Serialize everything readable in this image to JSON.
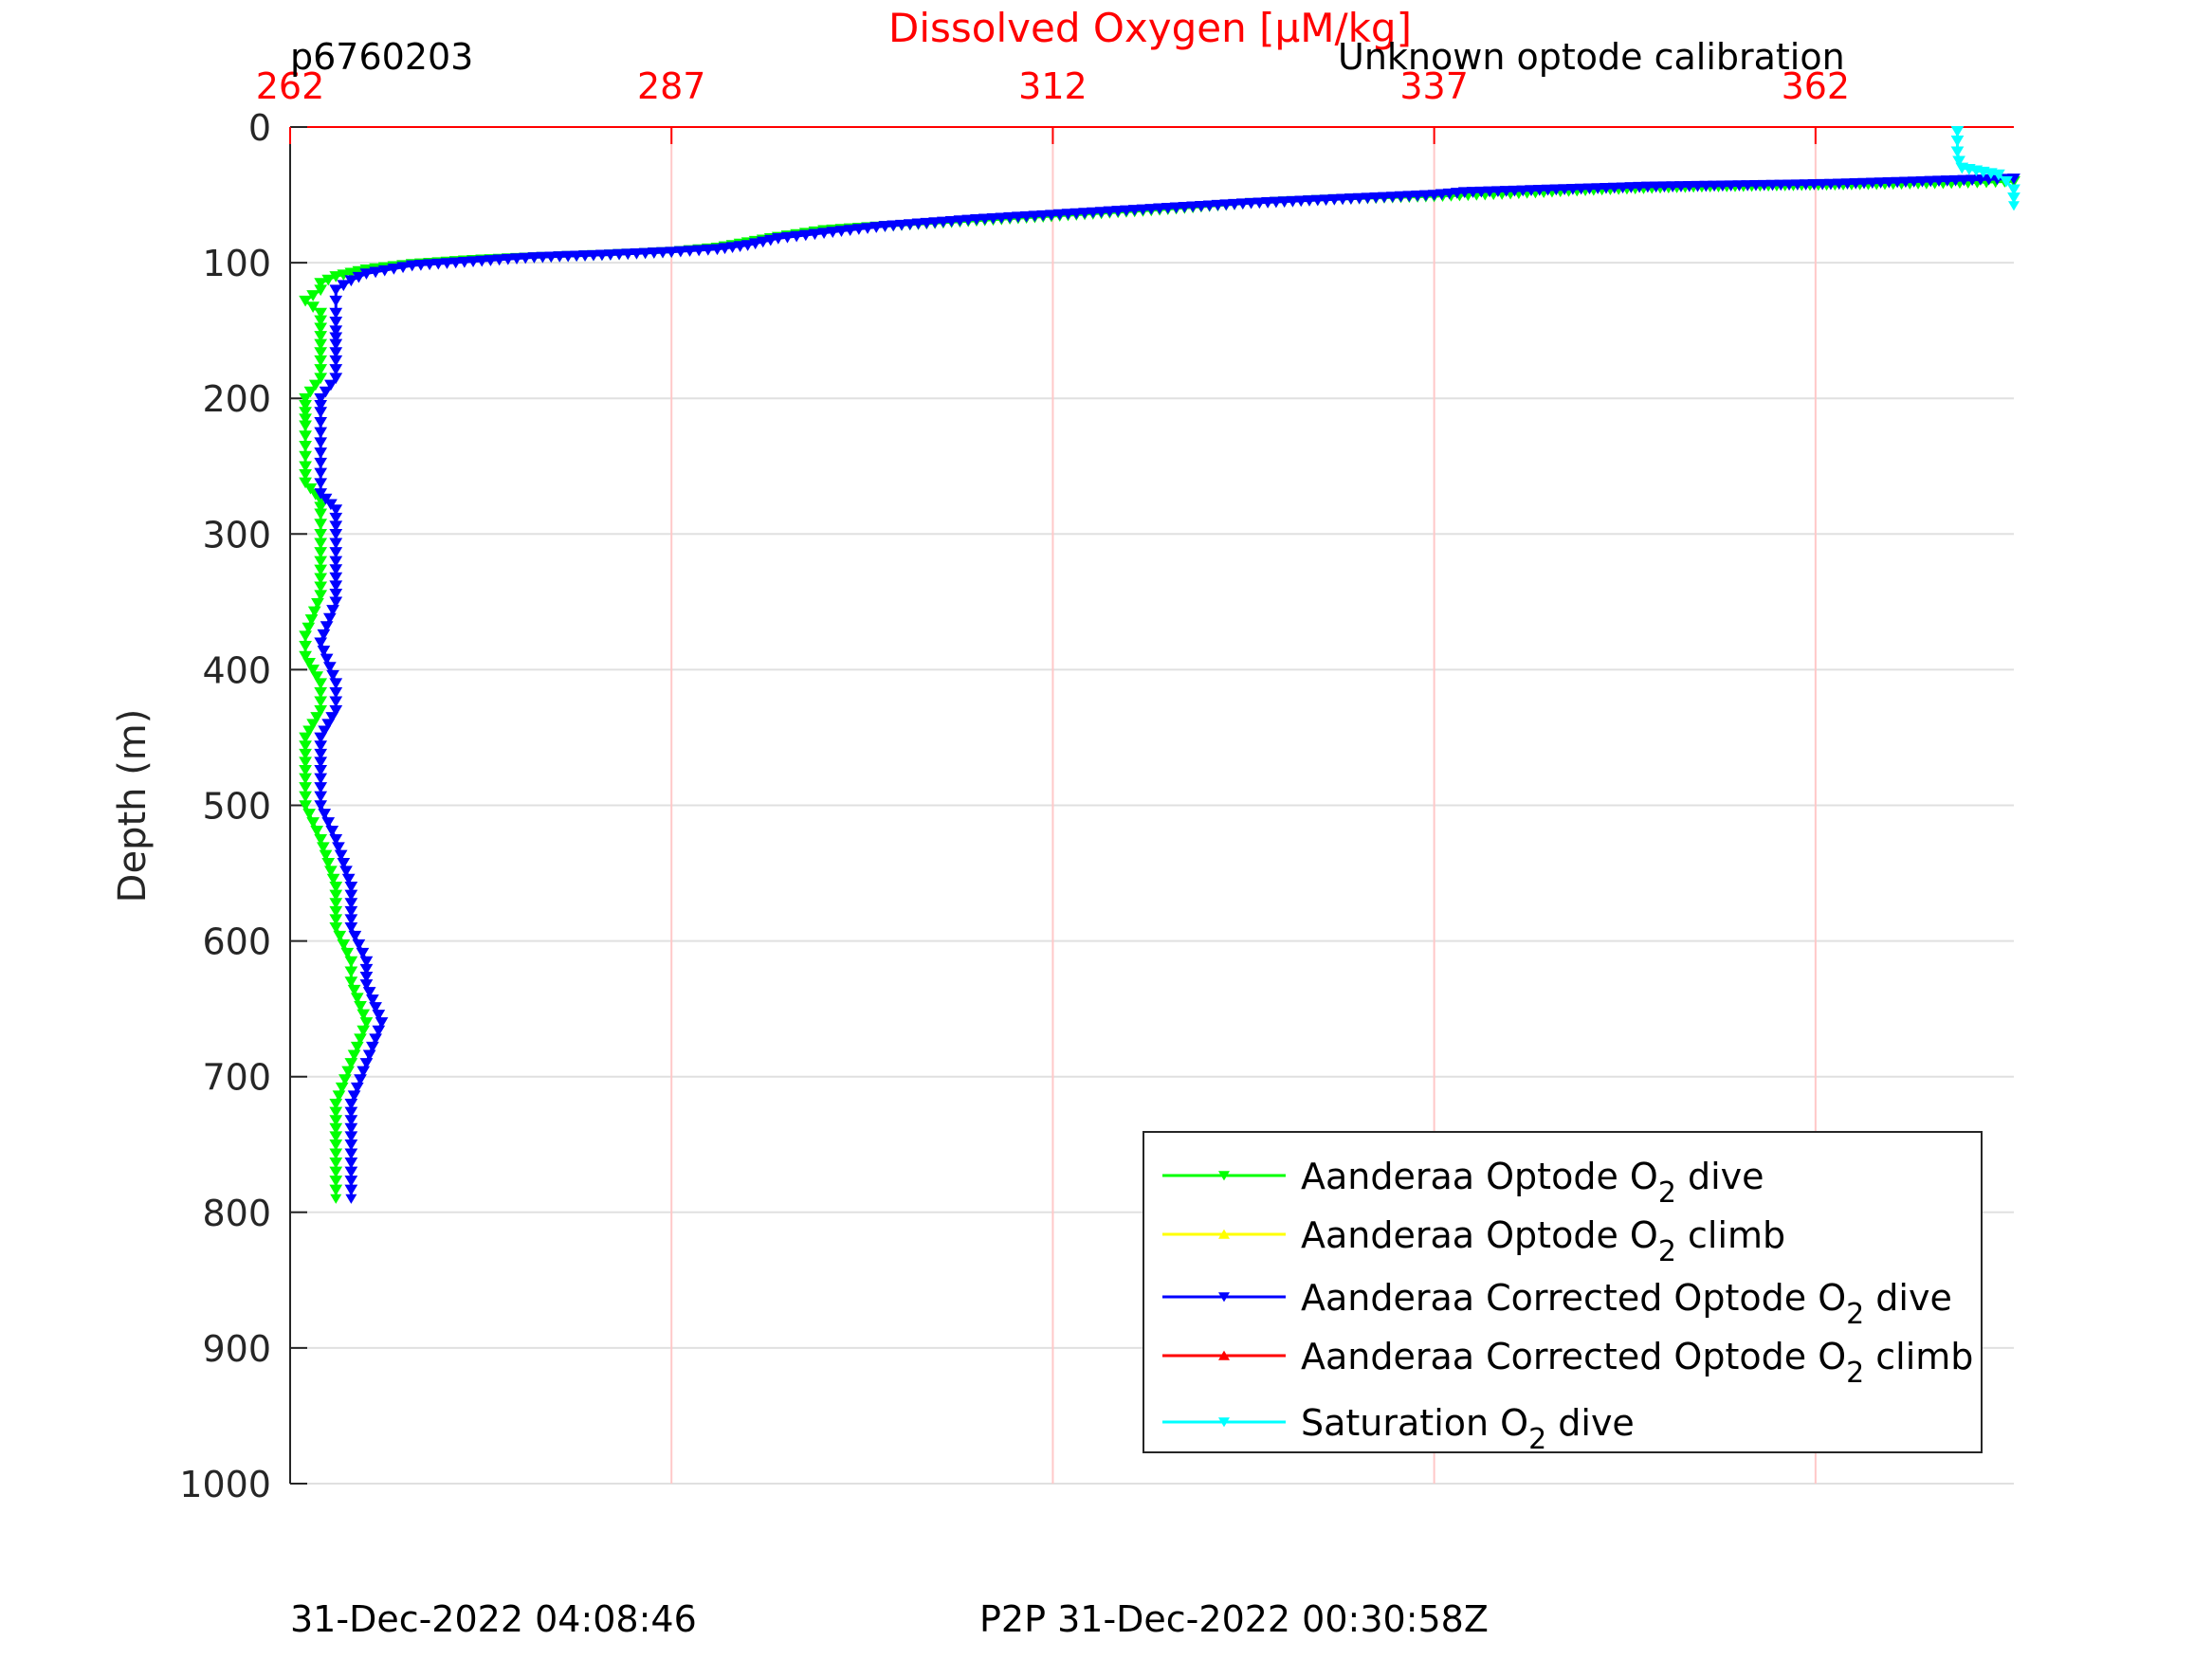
{
  "header": {
    "top_left": "p6760203",
    "top_right": "Unknown optode calibration"
  },
  "footer": {
    "left": "31-Dec-2022 04:08:46",
    "center": "P2P 31-Dec-2022 00:30:58Z"
  },
  "chart_data": {
    "type": "line",
    "title": "",
    "xlabel": "Dissolved Oxygen [μM/kg]",
    "ylabel": "Depth (m)",
    "xlim": [
      262,
      375
    ],
    "ylim": [
      0,
      1000
    ],
    "y_reversed": true,
    "x_axis_position": "top",
    "x_ticks": [
      262,
      287,
      312,
      337,
      362
    ],
    "y_ticks": [
      0,
      100,
      200,
      300,
      400,
      500,
      600,
      700,
      800,
      900,
      1000
    ],
    "grid": true,
    "legend_position": "bottom-right",
    "colors": {
      "x_axis": "#ff0000",
      "grid_x": "#ffc8c8",
      "grid_y": "#e0e0e0"
    },
    "series": [
      {
        "name": "Aanderaa Optode O2 dive",
        "color": "#00ff00",
        "marker": "triangle-down",
        "points": [
          [
            376,
            40
          ],
          [
            372,
            41
          ],
          [
            366,
            42
          ],
          [
            360,
            43
          ],
          [
            354,
            44
          ],
          [
            348,
            46
          ],
          [
            342,
            49
          ],
          [
            337,
            51
          ],
          [
            331,
            53
          ],
          [
            325,
            56
          ],
          [
            319,
            61
          ],
          [
            313,
            65
          ],
          [
            307,
            69
          ],
          [
            301,
            73
          ],
          [
            297,
            76
          ],
          [
            294,
            81
          ],
          [
            292,
            85
          ],
          [
            290,
            89
          ],
          [
            287,
            92
          ],
          [
            283,
            94
          ],
          [
            278,
            96
          ],
          [
            274,
            98
          ],
          [
            270,
            101
          ],
          [
            267,
            105
          ],
          [
            265,
            110
          ],
          [
            264,
            115
          ],
          [
            264,
            120
          ],
          [
            263,
            128
          ],
          [
            264,
            137
          ],
          [
            264,
            148
          ],
          [
            264,
            160
          ],
          [
            264,
            172
          ],
          [
            264,
            185
          ],
          [
            263,
            200
          ],
          [
            263,
            210
          ],
          [
            263,
            220
          ],
          [
            263,
            235
          ],
          [
            263,
            250
          ],
          [
            263,
            262
          ],
          [
            264,
            275
          ],
          [
            264,
            285
          ],
          [
            264,
            300
          ],
          [
            264,
            320
          ],
          [
            264,
            345
          ],
          [
            263,
            375
          ],
          [
            263,
            390
          ],
          [
            264,
            410
          ],
          [
            264,
            430
          ],
          [
            263,
            450
          ],
          [
            263,
            480
          ],
          [
            263,
            500
          ],
          [
            264,
            525
          ],
          [
            265,
            560
          ],
          [
            265,
            590
          ],
          [
            266,
            615
          ],
          [
            266,
            630
          ],
          [
            267,
            660
          ],
          [
            266,
            690
          ],
          [
            265,
            720
          ],
          [
            265,
            750
          ],
          [
            265,
            770
          ],
          [
            265,
            790
          ]
        ]
      },
      {
        "name": "Aanderaa Optode O2 climb",
        "color": "#ffff00",
        "marker": "triangle-up",
        "points": []
      },
      {
        "name": "Aanderaa Corrected Optode O2 dive",
        "color": "#0000ff",
        "marker": "triangle-down",
        "points": [
          [
            375,
            38
          ],
          [
            369,
            40
          ],
          [
            363,
            42
          ],
          [
            357,
            43
          ],
          [
            351,
            44
          ],
          [
            345,
            46
          ],
          [
            339,
            48
          ],
          [
            337,
            50
          ],
          [
            331,
            53
          ],
          [
            325,
            56
          ],
          [
            319,
            60
          ],
          [
            313,
            64
          ],
          [
            307,
            68
          ],
          [
            301,
            73
          ],
          [
            297,
            78
          ],
          [
            294,
            82
          ],
          [
            292,
            87
          ],
          [
            290,
            90
          ],
          [
            287,
            92
          ],
          [
            283,
            94
          ],
          [
            278,
            96
          ],
          [
            274,
            99
          ],
          [
            270,
            102
          ],
          [
            267,
            108
          ],
          [
            266,
            113
          ],
          [
            265,
            120
          ],
          [
            265,
            128
          ],
          [
            265,
            137
          ],
          [
            265,
            150
          ],
          [
            265,
            160
          ],
          [
            265,
            172
          ],
          [
            265,
            185
          ],
          [
            264,
            200
          ],
          [
            264,
            210
          ],
          [
            264,
            225
          ],
          [
            264,
            240
          ],
          [
            264,
            255
          ],
          [
            264,
            270
          ],
          [
            265,
            282
          ],
          [
            265,
            300
          ],
          [
            265,
            320
          ],
          [
            265,
            350
          ],
          [
            264,
            380
          ],
          [
            265,
            410
          ],
          [
            265,
            430
          ],
          [
            264,
            450
          ],
          [
            264,
            480
          ],
          [
            264,
            500
          ],
          [
            265,
            525
          ],
          [
            266,
            560
          ],
          [
            266,
            590
          ],
          [
            267,
            615
          ],
          [
            267,
            632
          ],
          [
            268,
            660
          ],
          [
            267,
            690
          ],
          [
            266,
            720
          ],
          [
            266,
            750
          ],
          [
            266,
            770
          ],
          [
            266,
            790
          ]
        ]
      },
      {
        "name": "Aanderaa Corrected Optode O2 climb",
        "color": "#ff0000",
        "marker": "triangle-up",
        "points": []
      },
      {
        "name": "Saturation O2 dive",
        "color": "#00ffff",
        "marker": "triangle-down",
        "points": [
          [
            371.3,
            3
          ],
          [
            371.3,
            10
          ],
          [
            371.3,
            18
          ],
          [
            371.4,
            25
          ],
          [
            371.6,
            30
          ],
          [
            373,
            33
          ],
          [
            374,
            35
          ],
          [
            374.5,
            40
          ],
          [
            375,
            46
          ],
          [
            375,
            52
          ],
          [
            375,
            58
          ]
        ]
      }
    ]
  }
}
